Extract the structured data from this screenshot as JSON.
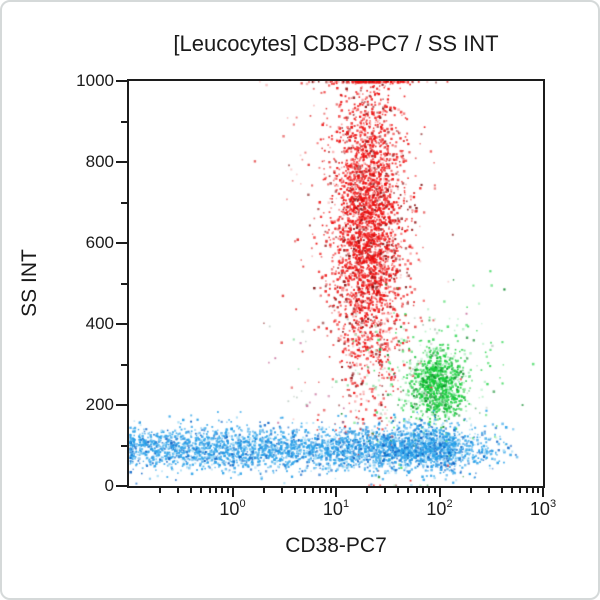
{
  "frame": {
    "background": "#ffffff",
    "border_color": "#d5d9d9"
  },
  "chart_data": {
    "type": "scatter",
    "title": "[Leucocytes] CD38-PC7 / SS INT",
    "xlabel": "CD38-PC7",
    "ylabel": "SS INT",
    "grid": false,
    "legend": false,
    "axis_color": "#1c1c1c",
    "text_color": "#1a1a1a",
    "x_axis": {
      "scale": "log",
      "min_log": -1,
      "max_log": 3,
      "tick_labels": [
        {
          "base": "10",
          "exp": "0",
          "log": 0
        },
        {
          "base": "10",
          "exp": "1",
          "log": 1
        },
        {
          "base": "10",
          "exp": "2",
          "log": 2
        },
        {
          "base": "10",
          "exp": "3",
          "log": 3
        }
      ]
    },
    "y_axis": {
      "scale": "linear",
      "min": 0,
      "max": 1000,
      "major_ticks": [
        0,
        200,
        400,
        600,
        800,
        1000
      ],
      "minor_ticks": [
        100,
        300,
        500,
        700,
        900
      ],
      "tick_labels": [
        "0",
        "200",
        "400",
        "600",
        "800",
        "1000"
      ]
    },
    "populations": [
      {
        "name": "debris-sparse",
        "count": 70,
        "x_log_range": [
          0.3,
          2.5
        ],
        "y_range": [
          150,
          430
        ],
        "colors": {
          "main": "#b9c9bf",
          "dark": "#c9739f",
          "light": "#8fdCA4"
        },
        "weights": [
          0.45,
          0.25,
          0.3
        ]
      },
      {
        "name": "granulocytes-halo",
        "count": 420,
        "x_log_mean": 1.27,
        "x_log_sd": 0.33,
        "y_mean": 620,
        "y_sd": 265,
        "y_clip_max": 1000,
        "colors": {
          "main": "#e03030",
          "dark": "#7d1212",
          "light": "#f4b0b0"
        },
        "weights": [
          0.55,
          0.22,
          0.23
        ]
      },
      {
        "name": "granulocytes-core",
        "count": 3000,
        "x_log_mean": 1.3,
        "x_log_sd": 0.17,
        "y_mean": 640,
        "y_sd": 190,
        "y_clip_max": 1000,
        "colors": {
          "main": "#ee1111",
          "dark": "#8f0f0f",
          "light": "#f89494"
        },
        "weights": [
          0.78,
          0.12,
          0.1
        ]
      },
      {
        "name": "monocytes-halo",
        "count": 300,
        "x_log_mean": 1.86,
        "x_log_sd": 0.34,
        "y_mean": 258,
        "y_sd": 92,
        "colors": {
          "main": "#3fd95f",
          "dark": "#128c2e",
          "light": "#b5efc5"
        },
        "weights": [
          0.5,
          0.15,
          0.35
        ]
      },
      {
        "name": "monocytes-core",
        "count": 850,
        "x_log_mean": 1.98,
        "x_log_sd": 0.12,
        "y_mean": 252,
        "y_sd": 40,
        "colors": {
          "main": "#17ce3a",
          "dark": "#0b8c27",
          "light": "#9fe9b4"
        },
        "weights": [
          0.72,
          0.13,
          0.15
        ]
      },
      {
        "name": "lymphocytes-band",
        "count": 3000,
        "x_log_range": [
          -1.06,
          2.15
        ],
        "y_mean": 95,
        "y_sd": 27,
        "y_clip_min": 4,
        "colors": {
          "main": "#29a0e8",
          "dark": "#0b63c6",
          "light": "#a6dcf5"
        },
        "weights": [
          0.7,
          0.16,
          0.14
        ]
      },
      {
        "name": "lymphocytes-right-tail",
        "count": 800,
        "x_log_mean": 1.95,
        "x_log_sd": 0.33,
        "x_log_max": 2.75,
        "y_mean": 98,
        "y_sd": 30,
        "y_clip_min": 4,
        "colors": {
          "main": "#29a0e8",
          "dark": "#0b63c6",
          "light": "#a6dcf5"
        },
        "weights": [
          0.66,
          0.17,
          0.17
        ]
      }
    ]
  }
}
